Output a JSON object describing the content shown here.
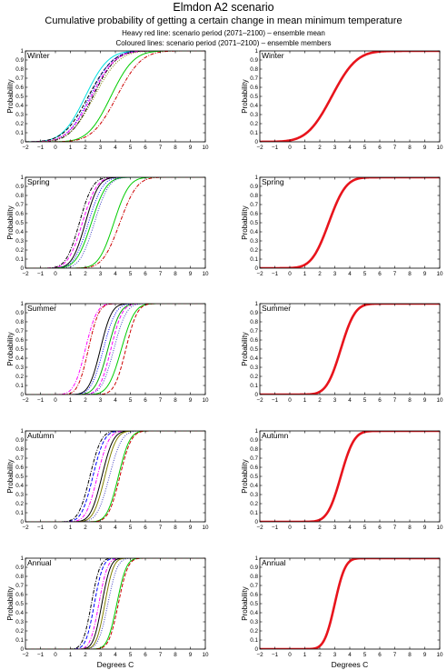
{
  "header": {
    "title": "Elmdon A2 scenario",
    "subtitle": "Cumulative probability of getting a certain change in mean minimum temperature",
    "note_mean": "Heavy red line: scenario period (2071–2100) – ensemble mean",
    "note_members": "Coloured lines: scenario period (2071–2100) – ensemble members"
  },
  "colors": {
    "ensemble_mean": "#e8141c",
    "members": [
      "#00e0e0",
      "#000000",
      "#0000ff",
      "#00cc00",
      "#ff00ff",
      "#cc0000",
      "#808000",
      "#00aa00",
      "#4040c0",
      "#e00000"
    ]
  },
  "chart_data": {
    "type": "line",
    "ylabel": "Probability",
    "xlabel": "Degrees C",
    "xlim": [
      -2,
      10
    ],
    "ylim": [
      0,
      1
    ],
    "xticks": [
      "−2",
      "−1",
      "0",
      "1",
      "2",
      "3",
      "4",
      "5",
      "6",
      "7",
      "8",
      "9",
      "10"
    ],
    "yticks": [
      "0",
      "0.1",
      "0.2",
      "0.3",
      "0.4",
      "0.5",
      "0.6",
      "0.7",
      "0.8",
      "0.9",
      "1"
    ],
    "panels": [
      {
        "season": "Winter",
        "members": [
          {
            "mean": 2.0,
            "sd": 1.2,
            "color": "#00e0e0",
            "dash": "solid"
          },
          {
            "mean": 2.2,
            "sd": 1.3,
            "color": "#000000",
            "dash": "dash"
          },
          {
            "mean": 2.3,
            "sd": 1.2,
            "color": "#0000ff",
            "dash": "dot"
          },
          {
            "mean": 2.5,
            "sd": 1.2,
            "color": "#000000",
            "dash": "dashdot"
          },
          {
            "mean": 2.4,
            "sd": 1.25,
            "color": "#ff00ff",
            "dash": "dash"
          },
          {
            "mean": 2.6,
            "sd": 1.3,
            "color": "#808000",
            "dash": "dot"
          },
          {
            "mean": 3.7,
            "sd": 1.2,
            "color": "#00cc00",
            "dash": "solid"
          },
          {
            "mean": 4.1,
            "sd": 1.3,
            "color": "#cc0000",
            "dash": "dashdot"
          }
        ],
        "ensemble_mean": {
          "mean": 2.8,
          "sd": 1.3
        }
      },
      {
        "season": "Spring",
        "members": [
          {
            "mean": 1.6,
            "sd": 0.7,
            "color": "#000000",
            "dash": "dashdot"
          },
          {
            "mean": 1.8,
            "sd": 0.75,
            "color": "#ff00ff",
            "dash": "dash"
          },
          {
            "mean": 2.0,
            "sd": 0.7,
            "color": "#000000",
            "dash": "solid"
          },
          {
            "mean": 2.2,
            "sd": 0.75,
            "color": "#0000ff",
            "dash": "dot"
          },
          {
            "mean": 2.4,
            "sd": 0.8,
            "color": "#00cc00",
            "dash": "solid"
          },
          {
            "mean": 2.6,
            "sd": 0.75,
            "color": "#4040c0",
            "dash": "dot"
          },
          {
            "mean": 3.9,
            "sd": 0.8,
            "color": "#00cc00",
            "dash": "solid"
          },
          {
            "mean": 4.3,
            "sd": 0.9,
            "color": "#cc0000",
            "dash": "dashdot"
          }
        ],
        "ensemble_mean": {
          "mean": 2.6,
          "sd": 0.9
        }
      },
      {
        "season": "Summer",
        "members": [
          {
            "mean": 2.0,
            "sd": 0.6,
            "color": "#ff00ff",
            "dash": "dashdot"
          },
          {
            "mean": 2.2,
            "sd": 0.55,
            "color": "#cc0000",
            "dash": "dashdot"
          },
          {
            "mean": 3.0,
            "sd": 0.6,
            "color": "#000000",
            "dash": "solid"
          },
          {
            "mean": 3.2,
            "sd": 0.65,
            "color": "#0000ff",
            "dash": "dot"
          },
          {
            "mean": 3.5,
            "sd": 0.65,
            "color": "#00aa00",
            "dash": "solid"
          },
          {
            "mean": 3.7,
            "sd": 0.6,
            "color": "#ff00ff",
            "dash": "dash"
          },
          {
            "mean": 3.9,
            "sd": 0.65,
            "color": "#4040c0",
            "dash": "dot"
          },
          {
            "mean": 4.4,
            "sd": 0.7,
            "color": "#00cc00",
            "dash": "solid"
          },
          {
            "mean": 4.7,
            "sd": 0.6,
            "color": "#cc0000",
            "dash": "dash"
          }
        ],
        "ensemble_mean": {
          "mean": 3.4,
          "sd": 0.75
        }
      },
      {
        "season": "Autumn",
        "members": [
          {
            "mean": 2.3,
            "sd": 0.6,
            "color": "#000000",
            "dash": "dashdot"
          },
          {
            "mean": 2.5,
            "sd": 0.6,
            "color": "#0000ff",
            "dash": "dash"
          },
          {
            "mean": 2.8,
            "sd": 0.6,
            "color": "#ff00ff",
            "dash": "dashdot"
          },
          {
            "mean": 3.1,
            "sd": 0.6,
            "color": "#000000",
            "dash": "solid"
          },
          {
            "mean": 3.3,
            "sd": 0.6,
            "color": "#808000",
            "dash": "solid"
          },
          {
            "mean": 3.6,
            "sd": 0.65,
            "color": "#4040c0",
            "dash": "dot"
          },
          {
            "mean": 4.2,
            "sd": 0.6,
            "color": "#00cc00",
            "dash": "solid"
          },
          {
            "mean": 4.3,
            "sd": 0.6,
            "color": "#cc0000",
            "dash": "dash"
          }
        ],
        "ensemble_mean": {
          "mean": 3.4,
          "sd": 0.7
        }
      },
      {
        "season": "Annual",
        "members": [
          {
            "mean": 2.4,
            "sd": 0.45,
            "color": "#000000",
            "dash": "dashdot"
          },
          {
            "mean": 2.6,
            "sd": 0.45,
            "color": "#0000ff",
            "dash": "dash"
          },
          {
            "mean": 2.9,
            "sd": 0.45,
            "color": "#ff00ff",
            "dash": "dashdot"
          },
          {
            "mean": 3.1,
            "sd": 0.45,
            "color": "#000000",
            "dash": "solid"
          },
          {
            "mean": 3.3,
            "sd": 0.45,
            "color": "#808000",
            "dash": "solid"
          },
          {
            "mean": 3.5,
            "sd": 0.5,
            "color": "#4040c0",
            "dash": "dot"
          },
          {
            "mean": 4.1,
            "sd": 0.5,
            "color": "#00cc00",
            "dash": "solid"
          },
          {
            "mean": 4.2,
            "sd": 0.5,
            "color": "#cc0000",
            "dash": "dash"
          }
        ],
        "ensemble_mean": {
          "mean": 3.0,
          "sd": 0.55
        }
      }
    ]
  }
}
